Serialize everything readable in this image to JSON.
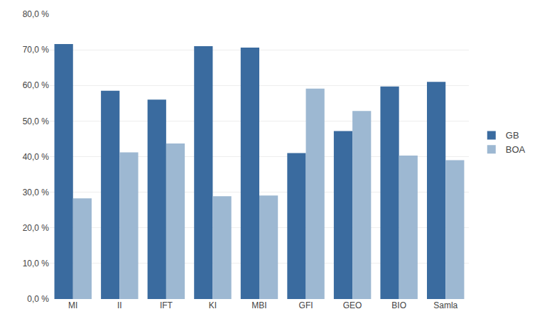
{
  "chart_data": {
    "type": "bar",
    "categories": [
      "MI",
      "II",
      "IFT",
      "KI",
      "MBI",
      "GFI",
      "GEO",
      "BIO",
      "Samla"
    ],
    "series": [
      {
        "name": "GB",
        "color": "#3A6B9F",
        "values": [
          0.716,
          0.585,
          0.56,
          0.71,
          0.706,
          0.41,
          0.472,
          0.597,
          0.61
        ]
      },
      {
        "name": "BOA",
        "color": "#9DB8D2",
        "values": [
          0.283,
          0.412,
          0.437,
          0.289,
          0.291,
          0.591,
          0.528,
          0.403,
          0.39
        ]
      }
    ],
    "ylim": [
      0.0,
      0.8
    ],
    "yticks": [
      {
        "value": 0.0,
        "label": "0,0 %"
      },
      {
        "value": 0.1,
        "label": "10,0 %"
      },
      {
        "value": 0.2,
        "label": "20,0 %"
      },
      {
        "value": 0.3,
        "label": "30,0 %"
      },
      {
        "value": 0.4,
        "label": "40,0 %"
      },
      {
        "value": 0.5,
        "label": "50,0 %"
      },
      {
        "value": 0.6,
        "label": "60,0 %"
      },
      {
        "value": 0.7,
        "label": "70,0 %"
      },
      {
        "value": 0.8,
        "label": "80,0 %"
      }
    ],
    "grid": true,
    "legend": "right"
  }
}
